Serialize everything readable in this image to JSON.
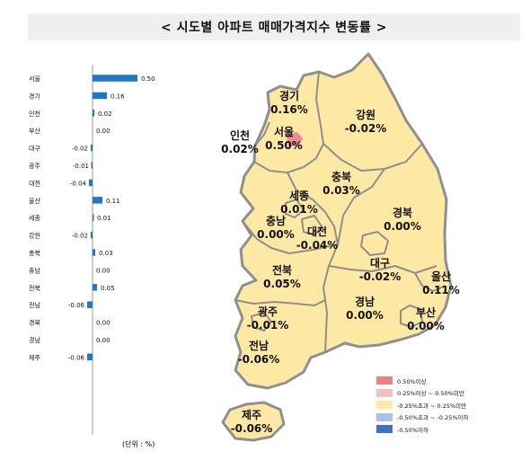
{
  "title": "< 시도별 아파트 매매가격지수 변동률 >",
  "unit": "(단위 : %)",
  "colors": {
    "title_bg": "#efefef",
    "bar": "#1f77c8",
    "map_fill": "#fde9a4",
    "map_border": "#8f8f8f",
    "seoul_fill": "#ee8b93"
  },
  "chart_data": [
    {
      "type": "bar",
      "orientation": "horizontal",
      "categories": [
        "서울",
        "경기",
        "인천",
        "부산",
        "대구",
        "광주",
        "대전",
        "울산",
        "세종",
        "강원",
        "충북",
        "충남",
        "전북",
        "전남",
        "경북",
        "경남",
        "제주"
      ],
      "values": [
        0.5,
        0.16,
        0.02,
        0.0,
        -0.02,
        -0.01,
        -0.04,
        0.11,
        0.01,
        -0.02,
        0.03,
        0.0,
        0.05,
        -0.06,
        0.0,
        0.0,
        -0.06
      ],
      "value_labels": [
        "0.50",
        "0.16",
        "0.02",
        "0.00",
        "-0.02",
        "-0.01",
        "-0.04",
        "0.11",
        "0.01",
        "-0.02",
        "0.03",
        "0.00",
        "0.05",
        "-0.06",
        "0.00",
        "0.00",
        "-0.06"
      ],
      "grid": false
    },
    {
      "type": "map",
      "regions": [
        {
          "name": "경기",
          "value": "0.16%"
        },
        {
          "name": "강원",
          "value": "-0.02%"
        },
        {
          "name": "인천",
          "value": "0.02%"
        },
        {
          "name": "서울",
          "value": "0.50%"
        },
        {
          "name": "충북",
          "value": "0.03%"
        },
        {
          "name": "세종",
          "value": "0.01%"
        },
        {
          "name": "충남",
          "value": "0.00%"
        },
        {
          "name": "대전",
          "value": "-0.04%"
        },
        {
          "name": "경북",
          "value": "0.00%"
        },
        {
          "name": "전북",
          "value": "0.05%"
        },
        {
          "name": "대구",
          "value": "-0.02%"
        },
        {
          "name": "울산",
          "value": "0.11%"
        },
        {
          "name": "광주",
          "value": "-0.01%"
        },
        {
          "name": "경남",
          "value": "0.00%"
        },
        {
          "name": "부산",
          "value": "0.00%"
        },
        {
          "name": "전남",
          "value": "-0.06%"
        },
        {
          "name": "제주",
          "value": "-0.06%"
        }
      ],
      "legend": [
        {
          "label": "0.50%이상",
          "color": "#ee7f86"
        },
        {
          "label": "0.25%이상 ~ 0.50%미만",
          "color": "#f5bcc1"
        },
        {
          "label": "-0.25%초과 ~ 0.25%미만",
          "color": "#fde9a4"
        },
        {
          "label": "-0.50%초과 ~ -0.25%이하",
          "color": "#a9c1e6"
        },
        {
          "label": "-0.50%이하",
          "color": "#3f70c3"
        }
      ],
      "legend_position": "bottom-right"
    }
  ]
}
